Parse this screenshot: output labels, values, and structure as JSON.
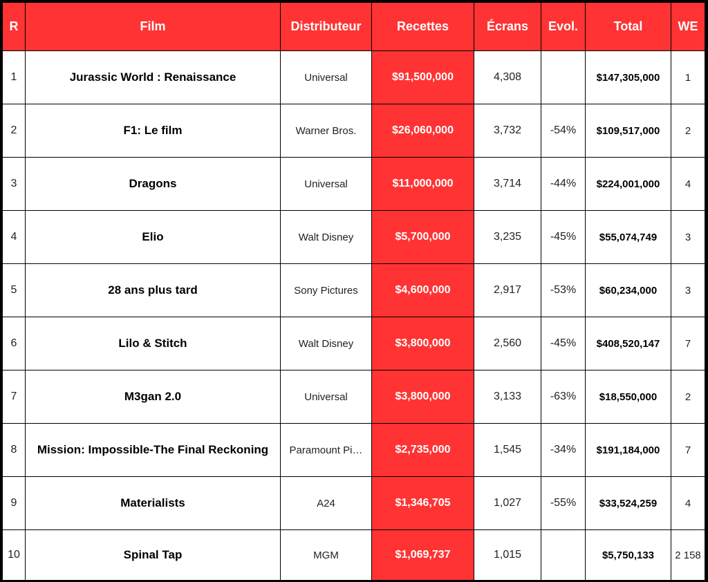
{
  "table": {
    "headers": [
      "R",
      "Film",
      "Distributeur",
      "Recettes",
      "Écrans",
      "Evol.",
      "Total",
      "WE"
    ],
    "rows": [
      [
        "1",
        "Jurassic World : Renaissance",
        "Universal",
        "$91,500,000",
        "4,308",
        null,
        "$147,305,000",
        "1"
      ],
      [
        "2",
        "F1: Le film",
        "Warner Bros.",
        "$26,060,000",
        "3,732",
        "-54%",
        "$109,517,000",
        "2"
      ],
      [
        "3",
        "Dragons",
        "Universal",
        "$11,000,000",
        "3,714",
        "-44%",
        "$224,001,000",
        "4"
      ],
      [
        "4",
        "Elio",
        "Walt Disney",
        "$5,700,000",
        "3,235",
        "-45%",
        "$55,074,749",
        "3"
      ],
      [
        "5",
        "28 ans plus tard",
        "Sony Pictures",
        "$4,600,000",
        "2,917",
        "-53%",
        "$60,234,000",
        "3"
      ],
      [
        "6",
        "Lilo & Stitch",
        "Walt Disney",
        "$3,800,000",
        "2,560",
        "-45%",
        "$408,520,147",
        "7"
      ],
      [
        "7",
        "M3gan 2.0",
        "Universal",
        "$3,800,000",
        "3,133",
        "-63%",
        "$18,550,000",
        "2"
      ],
      [
        "8",
        "Mission: Impossible-The Final Reckoning",
        "Paramount Pi…",
        "$2,735,000",
        "1,545",
        "-34%",
        "$191,184,000",
        "7"
      ],
      [
        "9",
        "Materialists",
        "A24",
        "$1,346,705",
        "1,027",
        "-55%",
        "$33,524,259",
        "4"
      ],
      [
        "10",
        "Spinal Tap",
        "MGM",
        "$1,069,737",
        "1,015",
        null,
        "$5,750,133",
        "2 158"
      ]
    ]
  }
}
